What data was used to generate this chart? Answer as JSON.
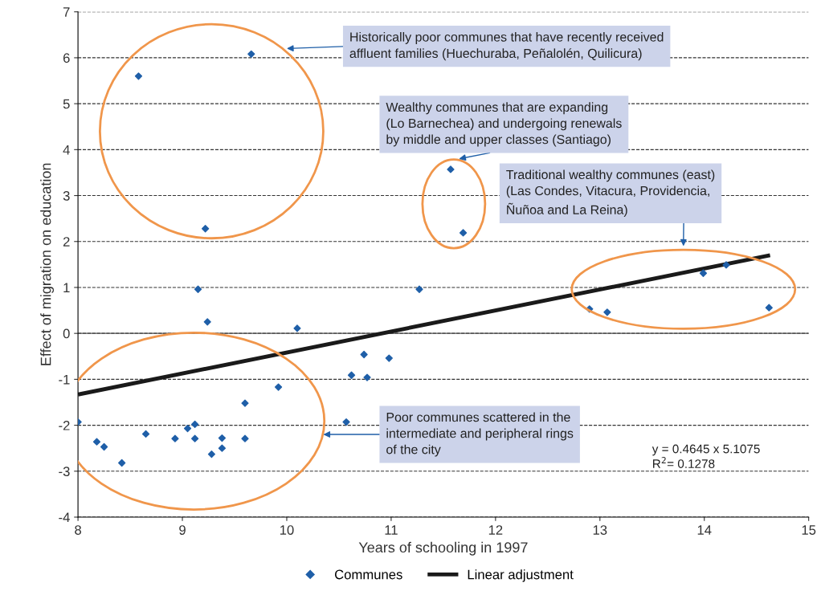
{
  "chart_data": {
    "type": "scatter",
    "xlabel": "Years of schooling in 1997",
    "ylabel": "Effect of migration on education",
    "xlim": [
      8,
      15
    ],
    "xticks": [
      8,
      9,
      10,
      11,
      12,
      13,
      14,
      15
    ],
    "ylim": [
      -4,
      7
    ],
    "yticks": [
      -4,
      -3,
      -2,
      -1,
      0,
      1,
      2,
      3,
      4,
      5,
      6,
      7
    ],
    "grid": "y",
    "legend": "bottom",
    "series": [
      {
        "name": "Communes",
        "color": "#1f5fa8",
        "marker": "diamond",
        "x": [
          8.58,
          9.66,
          9.22,
          9.15,
          9.24,
          10.1,
          11.27,
          11.57,
          11.69,
          12.9,
          13.07,
          13.99,
          14.21,
          14.62,
          8.0,
          8.18,
          8.25,
          8.42,
          8.65,
          8.93,
          9.05,
          9.12,
          9.12,
          9.28,
          9.38,
          9.38,
          9.6,
          9.6,
          9.92,
          10.57,
          10.62,
          10.74,
          10.77,
          10.98
        ],
        "values": [
          5.6,
          6.08,
          2.28,
          0.96,
          0.25,
          0.11,
          0.96,
          3.57,
          2.19,
          0.53,
          0.46,
          1.31,
          1.49,
          0.56,
          -1.93,
          -2.36,
          -2.47,
          -2.82,
          -2.19,
          -2.29,
          -2.07,
          -1.98,
          -2.29,
          -2.63,
          -2.28,
          -2.5,
          -2.29,
          -1.52,
          -1.17,
          -1.93,
          -0.91,
          -0.46,
          -0.96,
          -0.54
        ]
      },
      {
        "name": "Linear adjustment",
        "color": "#1a1a1a",
        "type": "line",
        "x": [
          8,
          14.63
        ],
        "values": [
          -1.33,
          1.7
        ]
      }
    ],
    "annotations": [
      "Historically poor communes that have recently received\naffluent families (Huechuraba, Peñalolén, Quilicura)",
      "Wealthy communes that are expanding\n(Lo Barnechea) and undergoing renewals\nby middle and upper classes (Santiago)",
      "Traditional wealthy communes (east)\n(Las Condes, Vitacura, Providencia,\nÑuñoa and La Reina)",
      "Poor communes scattered in the\nintermediate and peripheral rings\nof the city",
      "y = 0.4645 x 5.1075\nR$^{2}$= 0.1278"
    ]
  }
}
